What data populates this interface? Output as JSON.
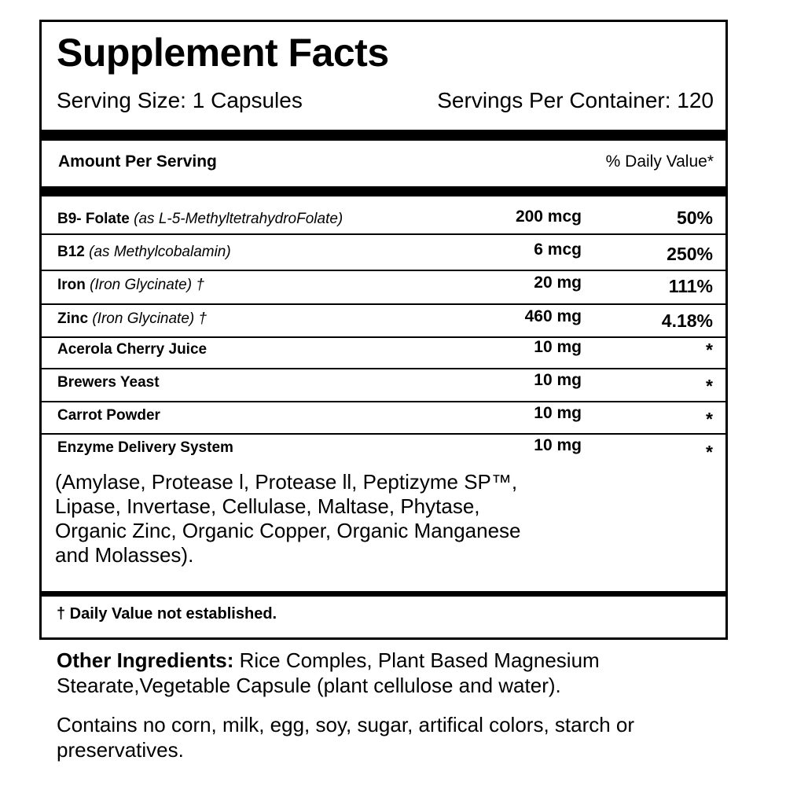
{
  "title": "Supplement Facts",
  "serving_size": "Serving Size: 1 Capsules",
  "servings_per_container": "Servings Per Container: 120",
  "amount_per_serving": "Amount Per Serving",
  "daily_value_header": "% Daily Value*",
  "rows": [
    {
      "name": "B9- Folate",
      "detail": "(as L-5-MethyltetrahydroFolate)",
      "amount": "200 mcg",
      "dv": "50%"
    },
    {
      "name": "B12",
      "detail": "(as Methylcobalamin)",
      "amount": "6 mcg",
      "dv": "250%"
    },
    {
      "name": "Iron",
      "detail": "(Iron Glycinate) †",
      "amount": "20 mg",
      "dv": "111%"
    },
    {
      "name": "Zinc",
      "detail": "(Iron Glycinate) †",
      "amount": "460 mg",
      "dv": "4.18%"
    },
    {
      "name": "Acerola Cherry Juice",
      "detail": "",
      "amount": "10 mg",
      "dv": "*"
    },
    {
      "name": "Brewers Yeast",
      "detail": "",
      "amount": "10 mg",
      "dv": "*"
    },
    {
      "name": "Carrot Powder",
      "detail": "",
      "amount": "10 mg",
      "dv": "*"
    },
    {
      "name": "Enzyme Delivery System",
      "detail": "",
      "amount": "10 mg",
      "dv": "*"
    }
  ],
  "enzyme_blend": "(Amylase, Protease l, Protease ll, Peptizyme SP™, Lipase, Invertase, Cellulase, Maltase, Phytase, Organic Zinc, Organic Copper, Organic Manganese and Molasses).",
  "footnote": "† Daily Value not established.",
  "other_ingredients_label": "Other Ingredients:",
  "other_ingredients": " Rice Comples, Plant Based Magnesium Stearate,Vegetable Capsule (plant cellulose and water).",
  "contains_statement": "Contains no corn, milk, egg, soy, sugar, artifical colors, starch or preservatives."
}
